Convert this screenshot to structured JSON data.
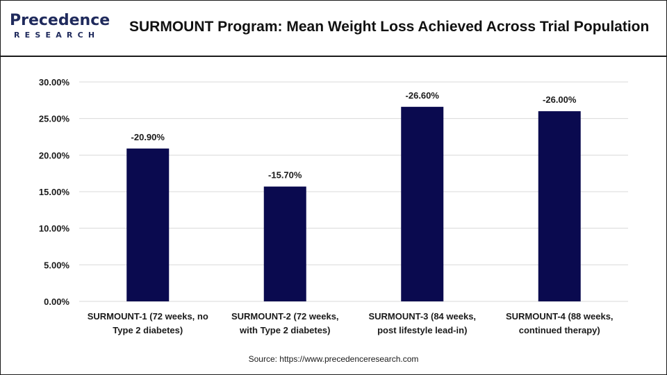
{
  "header": {
    "logo_word": "Precedence",
    "logo_sub": "RESEARCH",
    "title": "SURMOUNT Program: Mean Weight Loss Achieved Across Trial Population"
  },
  "footer": {
    "source": "Source: https://www.precedenceresearch.com"
  },
  "colors": {
    "bar": "#0a0a4f",
    "grid": "#d9d9d9",
    "logo": "#1f2a5c"
  },
  "chart_data": {
    "type": "bar",
    "title": "SURMOUNT Program: Mean Weight Loss Achieved Across Trial Population",
    "xlabel": "",
    "ylabel": "",
    "ylim": [
      0,
      30
    ],
    "yticks": [
      "0.00%",
      "5.00%",
      "10.00%",
      "15.00%",
      "20.00%",
      "25.00%",
      "30.00%"
    ],
    "ytick_values": [
      0,
      5,
      10,
      15,
      20,
      25,
      30
    ],
    "grid": true,
    "categories": [
      [
        "SURMOUNT-1 (72 weeks, no",
        "Type 2 diabetes)"
      ],
      [
        "SURMOUNT-2 (72 weeks,",
        "with Type 2 diabetes)"
      ],
      [
        "SURMOUNT-3 (84 weeks,",
        "post lifestyle lead-in)"
      ],
      [
        "SURMOUNT-4 (88 weeks,",
        "continued therapy)"
      ]
    ],
    "values": [
      20.9,
      15.7,
      26.6,
      26.0
    ],
    "data_labels": [
      "-20.90%",
      "-15.70%",
      "-26.60%",
      "-26.00%"
    ]
  }
}
